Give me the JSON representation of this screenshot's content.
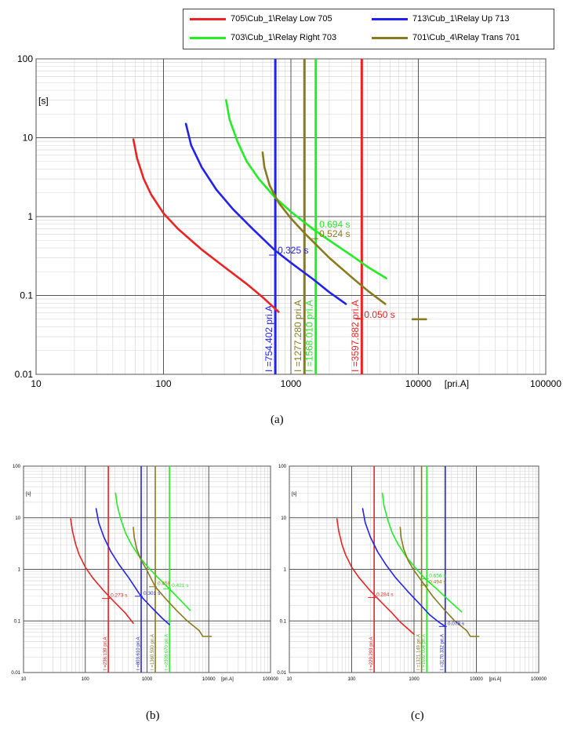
{
  "legend": [
    {
      "label": "705\\Cub_1\\Relay Low 705",
      "color": "#ee2222"
    },
    {
      "label": "713\\Cub_1\\Relay Up 713",
      "color": "#2222ee"
    },
    {
      "label": "703\\Cub_1\\Relay Right 703",
      "color": "#22ee22"
    },
    {
      "label": "701\\Cub_4\\Relay Trans 701",
      "color": "#8a7a1e"
    }
  ],
  "captions": {
    "a": "(a)",
    "b": "(b)",
    "c": "(c)"
  },
  "colors": {
    "red": "#ee2222",
    "blue": "#2222ee",
    "green": "#22ee22",
    "olive": "#8a7a1e"
  },
  "chart_data": [
    {
      "panel": "(a)",
      "type": "line",
      "scale": "log-log",
      "xlabel": "[pri.A]",
      "ylabel": "[s]",
      "xlim": [
        10,
        100000
      ],
      "ylim": [
        0.01,
        100
      ],
      "x_ticks": [
        "10",
        "100",
        "1000",
        "10000",
        "100000"
      ],
      "y_ticks": [
        "0.01",
        "0.1",
        "1",
        "10",
        "100"
      ],
      "grid": true,
      "series": [
        {
          "name": "705\\Cub_1\\Relay Low 705",
          "color": "red",
          "x": [
            58,
            62,
            70,
            80,
            100,
            130,
            200,
            300,
            450,
            600,
            800
          ],
          "y": [
            9.5,
            5.5,
            3,
            1.9,
            1.1,
            0.7,
            0.38,
            0.23,
            0.14,
            0.095,
            0.062
          ]
        },
        {
          "name": "713\\Cub_1\\Relay Up 713",
          "color": "blue",
          "x": [
            150,
            165,
            200,
            260,
            350,
            500,
            754,
            1000,
            1500,
            2000,
            2700
          ],
          "y": [
            15,
            8,
            4.2,
            2.2,
            1.25,
            0.7,
            0.37,
            0.26,
            0.16,
            0.11,
            0.078
          ]
        },
        {
          "name": "703\\Cub_1\\Relay Right 703",
          "color": "green",
          "x": [
            310,
            330,
            380,
            450,
            560,
            750,
            1000,
            1500,
            2000,
            3000,
            4000,
            5600
          ],
          "y": [
            30,
            17,
            9,
            5,
            3,
            1.75,
            1.15,
            0.69,
            0.5,
            0.32,
            0.23,
            0.165
          ]
        },
        {
          "name": "701\\Cub_4\\Relay Trans 701",
          "color": "olive",
          "x": [
            600,
            620,
            680,
            800,
            1000,
            1300,
            2000,
            3000,
            4000,
            5500
          ],
          "y": [
            6.5,
            4.2,
            2.5,
            1.5,
            0.95,
            0.6,
            0.3,
            0.17,
            0.115,
            0.078
          ]
        },
        {
          "name": "",
          "color": "olive",
          "x": [
            9000,
            11500
          ],
          "y": [
            0.05,
            0.05
          ]
        }
      ],
      "vlines": [
        {
          "x": 754.402,
          "color": "blue",
          "label": "I =754.402 pri.A"
        },
        {
          "x": 1277.28,
          "color": "olive",
          "label": "I =1277.280 pri.A"
        },
        {
          "x": 1568.01,
          "color": "green",
          "label": "I =1568.010 pri.A"
        },
        {
          "x": 3597.882,
          "color": "red",
          "label": "I =3597.882 pri.A"
        }
      ],
      "annotations": [
        {
          "x": 1600,
          "y": 0.694,
          "text": "0.694 s",
          "color": "green"
        },
        {
          "x": 1600,
          "y": 0.524,
          "text": "0.524 s",
          "color": "olive"
        },
        {
          "x": 754.402,
          "y": 0.325,
          "text": "0.325 s",
          "color": "blue"
        },
        {
          "x": 3600,
          "y": 0.05,
          "text": "0.050 s",
          "color": "red"
        }
      ]
    },
    {
      "panel": "(b)",
      "type": "line",
      "scale": "log-log",
      "xlabel": "[pri.A]",
      "ylabel": "[s]",
      "xlim": [
        10,
        100000
      ],
      "ylim": [
        0.01,
        100
      ],
      "x_ticks": [
        "10",
        "100",
        "1000",
        "10000",
        "100000"
      ],
      "y_ticks": [
        "0.01",
        "0.1",
        "1",
        "10",
        "100"
      ],
      "grid": true,
      "series": [
        {
          "name": "705\\Cub_1\\Relay Low 705",
          "color": "red",
          "x": [
            58,
            62,
            70,
            80,
            100,
            130,
            200,
            300,
            450,
            600
          ],
          "y": [
            9.5,
            5.5,
            3,
            1.9,
            1.1,
            0.7,
            0.38,
            0.23,
            0.14,
            0.09
          ]
        },
        {
          "name": "713\\Cub_1\\Relay Up 713",
          "color": "blue",
          "x": [
            150,
            165,
            200,
            260,
            350,
            500,
            800,
            1200,
            1800,
            2300
          ],
          "y": [
            15,
            8,
            4.2,
            2.2,
            1.25,
            0.7,
            0.3,
            0.18,
            0.11,
            0.085
          ]
        },
        {
          "name": "703\\Cub_1\\Relay Right 703",
          "color": "green",
          "x": [
            310,
            330,
            380,
            450,
            560,
            750,
            1000,
            1500,
            2300,
            3500,
            5000
          ],
          "y": [
            30,
            17,
            9,
            5,
            3,
            1.75,
            1.15,
            0.69,
            0.42,
            0.25,
            0.16
          ]
        },
        {
          "name": "701\\Cub_4\\Relay Trans 701",
          "color": "olive",
          "x": [
            600,
            620,
            680,
            800,
            1000,
            1360,
            2000,
            3000,
            4500,
            7000
          ],
          "y": [
            6.5,
            4.2,
            2.5,
            1.5,
            0.95,
            0.46,
            0.27,
            0.16,
            0.1,
            0.065
          ]
        },
        {
          "name": "",
          "color": "olive",
          "x": [
            7000,
            8000,
            11000
          ],
          "y": [
            0.065,
            0.05,
            0.05
          ]
        }
      ],
      "vlines": [
        {
          "x": 236.139,
          "color": "red",
          "label": "I =236.139 pri.A"
        },
        {
          "x": 803.61,
          "color": "blue",
          "label": "I =803.610 pri.A"
        },
        {
          "x": 1360.59,
          "color": "olive",
          "label": "I =1360.590 pri.A"
        },
        {
          "x": 2309.67,
          "color": "green",
          "label": "I =2309.670 pri.A"
        }
      ],
      "annotations": [
        {
          "x": 236.139,
          "y": 0.273,
          "text": "0.273 s",
          "color": "red"
        },
        {
          "x": 803.61,
          "y": 0.301,
          "text": "0.301 s",
          "color": "blue"
        },
        {
          "x": 1360.59,
          "y": 0.459,
          "text": "0.459",
          "color": "olive"
        },
        {
          "x": 2309.67,
          "y": 0.421,
          "text": "0.421 s",
          "color": "green"
        }
      ]
    },
    {
      "panel": "(c)",
      "type": "line",
      "scale": "log-log",
      "xlabel": "[pri.A]",
      "ylabel": "[s]",
      "xlim": [
        10,
        100000
      ],
      "ylim": [
        0.01,
        100
      ],
      "x_ticks": [
        "10",
        "100",
        "1000",
        "10000",
        "100000"
      ],
      "y_ticks": [
        "0.01",
        "0.1",
        "1",
        "10",
        "100"
      ],
      "grid": true,
      "series": [
        {
          "name": "705\\Cub_1\\Relay Low 705",
          "color": "red",
          "x": [
            58,
            62,
            70,
            80,
            100,
            130,
            200,
            300,
            450,
            600,
            800,
            1000
          ],
          "y": [
            9.5,
            5.5,
            3,
            1.9,
            1.1,
            0.7,
            0.38,
            0.23,
            0.14,
            0.095,
            0.07,
            0.055
          ]
        },
        {
          "name": "713\\Cub_1\\Relay Up 713",
          "color": "blue",
          "x": [
            150,
            165,
            200,
            260,
            350,
            500,
            800,
            1200,
            1800,
            2500,
            3170
          ],
          "y": [
            15,
            8,
            4.2,
            2.2,
            1.25,
            0.7,
            0.37,
            0.22,
            0.13,
            0.095,
            0.078
          ]
        },
        {
          "name": "703\\Cub_1\\Relay Right 703",
          "color": "green",
          "x": [
            310,
            330,
            380,
            450,
            560,
            750,
            1000,
            1500,
            2300,
            3500,
            5800
          ],
          "y": [
            30,
            17,
            9,
            5,
            3,
            1.75,
            1.15,
            0.66,
            0.42,
            0.26,
            0.15
          ]
        },
        {
          "name": "701\\Cub_4\\Relay Trans 701",
          "color": "olive",
          "x": [
            600,
            620,
            680,
            800,
            1000,
            1321,
            2000,
            3000,
            4500,
            7000
          ],
          "y": [
            6.5,
            4.2,
            2.5,
            1.5,
            0.95,
            0.6,
            0.3,
            0.17,
            0.1,
            0.065
          ]
        },
        {
          "name": "",
          "color": "olive",
          "x": [
            7000,
            8000,
            11000
          ],
          "y": [
            0.065,
            0.05,
            0.05
          ]
        }
      ],
      "vlines": [
        {
          "x": 229.293,
          "color": "red",
          "label": "I =229.293 pri.A"
        },
        {
          "x": 1321.149,
          "color": "olive",
          "label": "I =1321.149 pri.A"
        },
        {
          "x": 1602.0,
          "color": "green",
          "label": "I =1602.004 pri.A"
        },
        {
          "x": 3170.332,
          "color": "blue",
          "label": "I =3170.332 pri.A"
        }
      ],
      "annotations": [
        {
          "x": 229.293,
          "y": 0.284,
          "text": "0.284 s",
          "color": "red"
        },
        {
          "x": 1602.0,
          "y": 0.656,
          "text": "0.656 s",
          "color": "green"
        },
        {
          "x": 1602.0,
          "y": 0.494,
          "text": "0.494 s",
          "color": "olive"
        },
        {
          "x": 3170.332,
          "y": 0.078,
          "text": "0.078 s",
          "color": "blue"
        }
      ]
    }
  ]
}
